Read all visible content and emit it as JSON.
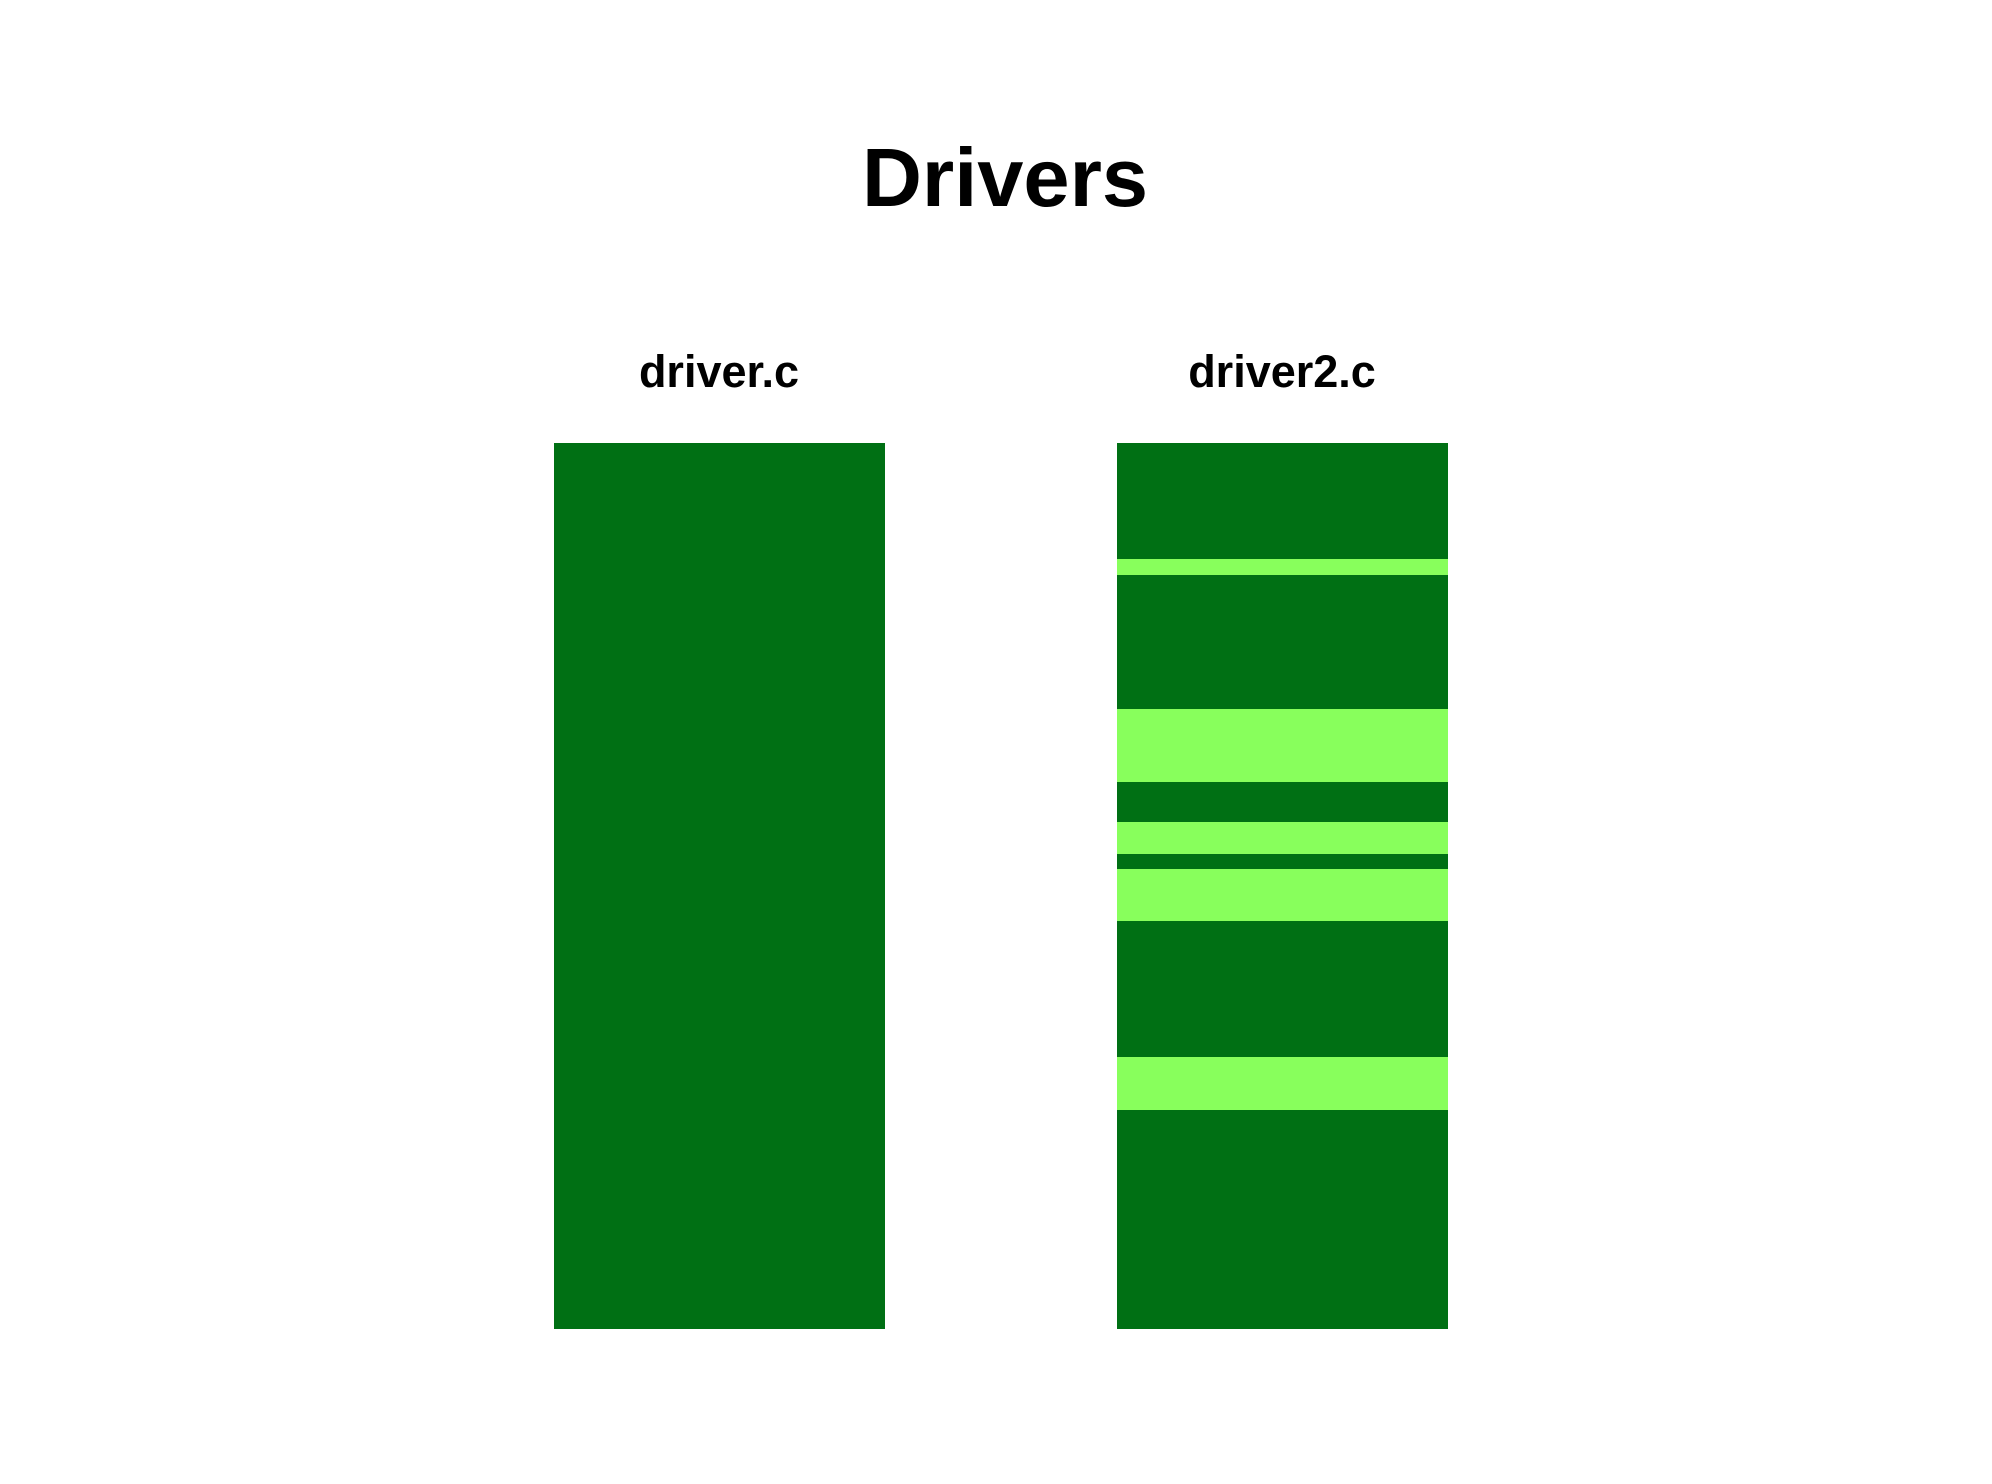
{
  "title": "Drivers",
  "colors": {
    "base": "#007014",
    "highlight": "#88ff5c",
    "text": "#000000",
    "background": "#ffffff"
  },
  "files": [
    {
      "name": "driver.c",
      "highlighted_ranges": []
    },
    {
      "name": "driver2.c",
      "highlighted_ranges": [
        [
          0.131,
          0.149
        ],
        [
          0.3,
          0.383
        ],
        [
          0.428,
          0.464
        ],
        [
          0.481,
          0.54
        ],
        [
          0.693,
          0.753
        ]
      ]
    }
  ]
}
